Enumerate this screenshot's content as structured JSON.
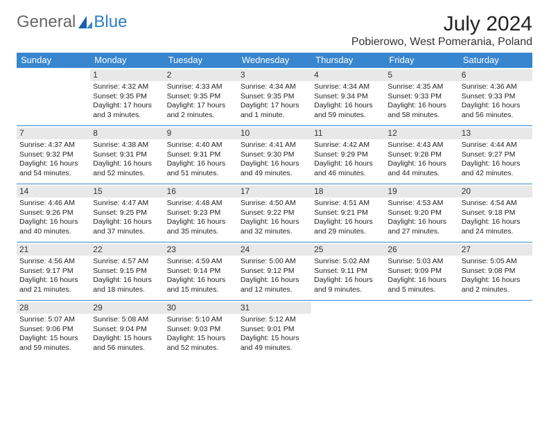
{
  "brand": {
    "part1": "General",
    "part2": "Blue"
  },
  "title": "July 2024",
  "location": "Pobierowo, West Pomerania, Poland",
  "colors": {
    "header_bg": "#3886cf",
    "daynum_bg": "#e8e8e8",
    "brand_blue": "#2d7dc9"
  },
  "weekdays": [
    "Sunday",
    "Monday",
    "Tuesday",
    "Wednesday",
    "Thursday",
    "Friday",
    "Saturday"
  ],
  "weeks": [
    [
      null,
      {
        "n": "1",
        "sr": "4:32 AM",
        "ss": "9:35 PM",
        "dl": "17 hours and 3 minutes."
      },
      {
        "n": "2",
        "sr": "4:33 AM",
        "ss": "9:35 PM",
        "dl": "17 hours and 2 minutes."
      },
      {
        "n": "3",
        "sr": "4:34 AM",
        "ss": "9:35 PM",
        "dl": "17 hours and 1 minute."
      },
      {
        "n": "4",
        "sr": "4:34 AM",
        "ss": "9:34 PM",
        "dl": "16 hours and 59 minutes."
      },
      {
        "n": "5",
        "sr": "4:35 AM",
        "ss": "9:33 PM",
        "dl": "16 hours and 58 minutes."
      },
      {
        "n": "6",
        "sr": "4:36 AM",
        "ss": "9:33 PM",
        "dl": "16 hours and 56 minutes."
      }
    ],
    [
      {
        "n": "7",
        "sr": "4:37 AM",
        "ss": "9:32 PM",
        "dl": "16 hours and 54 minutes."
      },
      {
        "n": "8",
        "sr": "4:38 AM",
        "ss": "9:31 PM",
        "dl": "16 hours and 52 minutes."
      },
      {
        "n": "9",
        "sr": "4:40 AM",
        "ss": "9:31 PM",
        "dl": "16 hours and 51 minutes."
      },
      {
        "n": "10",
        "sr": "4:41 AM",
        "ss": "9:30 PM",
        "dl": "16 hours and 49 minutes."
      },
      {
        "n": "11",
        "sr": "4:42 AM",
        "ss": "9:29 PM",
        "dl": "16 hours and 46 minutes."
      },
      {
        "n": "12",
        "sr": "4:43 AM",
        "ss": "9:28 PM",
        "dl": "16 hours and 44 minutes."
      },
      {
        "n": "13",
        "sr": "4:44 AM",
        "ss": "9:27 PM",
        "dl": "16 hours and 42 minutes."
      }
    ],
    [
      {
        "n": "14",
        "sr": "4:46 AM",
        "ss": "9:26 PM",
        "dl": "16 hours and 40 minutes."
      },
      {
        "n": "15",
        "sr": "4:47 AM",
        "ss": "9:25 PM",
        "dl": "16 hours and 37 minutes."
      },
      {
        "n": "16",
        "sr": "4:48 AM",
        "ss": "9:23 PM",
        "dl": "16 hours and 35 minutes."
      },
      {
        "n": "17",
        "sr": "4:50 AM",
        "ss": "9:22 PM",
        "dl": "16 hours and 32 minutes."
      },
      {
        "n": "18",
        "sr": "4:51 AM",
        "ss": "9:21 PM",
        "dl": "16 hours and 29 minutes."
      },
      {
        "n": "19",
        "sr": "4:53 AM",
        "ss": "9:20 PM",
        "dl": "16 hours and 27 minutes."
      },
      {
        "n": "20",
        "sr": "4:54 AM",
        "ss": "9:18 PM",
        "dl": "16 hours and 24 minutes."
      }
    ],
    [
      {
        "n": "21",
        "sr": "4:56 AM",
        "ss": "9:17 PM",
        "dl": "16 hours and 21 minutes."
      },
      {
        "n": "22",
        "sr": "4:57 AM",
        "ss": "9:15 PM",
        "dl": "16 hours and 18 minutes."
      },
      {
        "n": "23",
        "sr": "4:59 AM",
        "ss": "9:14 PM",
        "dl": "16 hours and 15 minutes."
      },
      {
        "n": "24",
        "sr": "5:00 AM",
        "ss": "9:12 PM",
        "dl": "16 hours and 12 minutes."
      },
      {
        "n": "25",
        "sr": "5:02 AM",
        "ss": "9:11 PM",
        "dl": "16 hours and 9 minutes."
      },
      {
        "n": "26",
        "sr": "5:03 AM",
        "ss": "9:09 PM",
        "dl": "16 hours and 5 minutes."
      },
      {
        "n": "27",
        "sr": "5:05 AM",
        "ss": "9:08 PM",
        "dl": "16 hours and 2 minutes."
      }
    ],
    [
      {
        "n": "28",
        "sr": "5:07 AM",
        "ss": "9:06 PM",
        "dl": "15 hours and 59 minutes."
      },
      {
        "n": "29",
        "sr": "5:08 AM",
        "ss": "9:04 PM",
        "dl": "15 hours and 56 minutes."
      },
      {
        "n": "30",
        "sr": "5:10 AM",
        "ss": "9:03 PM",
        "dl": "15 hours and 52 minutes."
      },
      {
        "n": "31",
        "sr": "5:12 AM",
        "ss": "9:01 PM",
        "dl": "15 hours and 49 minutes."
      },
      null,
      null,
      null
    ]
  ],
  "labels": {
    "sunrise": "Sunrise:",
    "sunset": "Sunset:",
    "daylight": "Daylight:"
  }
}
